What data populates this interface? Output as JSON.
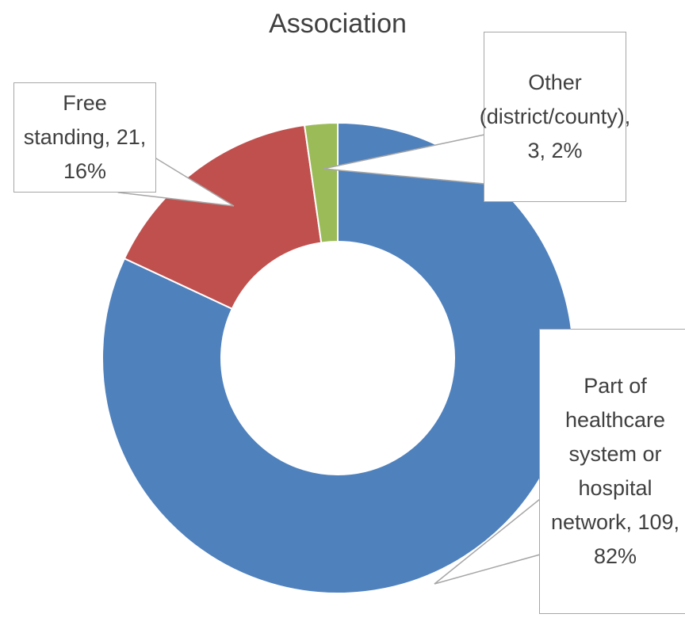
{
  "chart_data": {
    "type": "donut",
    "title": "Association",
    "values": [
      109,
      21,
      3
    ],
    "value_labels": [
      "Part of healthcare system or hospital network, 109, 82%",
      "Free standing, 21, 16%",
      "Other (district/county), 3, 2%"
    ],
    "colors": [
      "#4f81bd",
      "#c0504d",
      "#9bbb59"
    ]
  }
}
